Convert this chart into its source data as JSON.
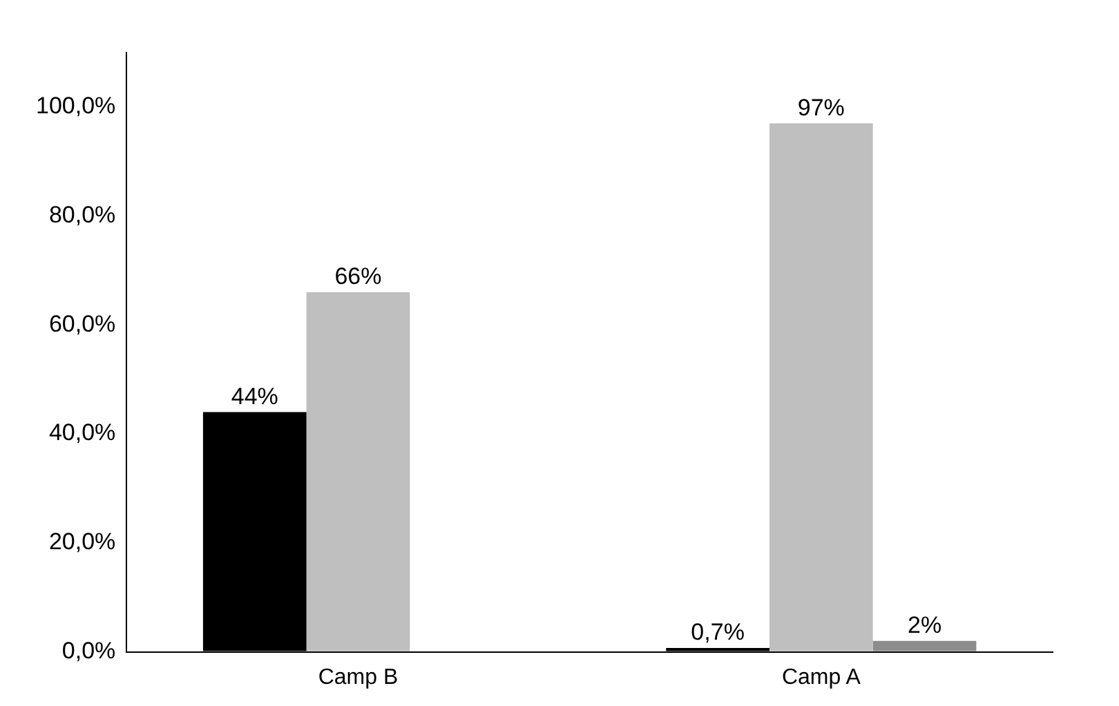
{
  "chart_data": {
    "type": "bar",
    "categories": [
      "Camp B",
      "Camp A"
    ],
    "series": [
      {
        "color": "#000000",
        "values": [
          44,
          0.7
        ],
        "value_labels": [
          "44%",
          "0,7%"
        ]
      },
      {
        "color": "#bfbfbf",
        "values": [
          66,
          97
        ],
        "value_labels": [
          "66%",
          "97%"
        ]
      },
      {
        "color": "#8c8c8c",
        "values": [
          null,
          2
        ],
        "value_labels": [
          null,
          "2%"
        ]
      }
    ],
    "ylim": [
      0,
      110
    ],
    "yticks": [
      {
        "value": 0,
        "label": "0,0%"
      },
      {
        "value": 20,
        "label": "20,0%"
      },
      {
        "value": 40,
        "label": "40,0%"
      },
      {
        "value": 60,
        "label": "60,0%"
      },
      {
        "value": 80,
        "label": "80,0%"
      },
      {
        "value": 100,
        "label": "100,0%"
      }
    ],
    "grid": false,
    "legend": false
  }
}
